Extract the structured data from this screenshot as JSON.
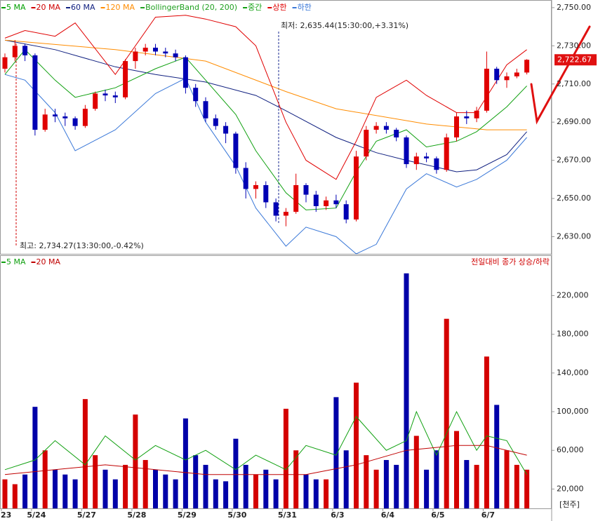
{
  "chart_data": [
    {
      "type": "candlestick",
      "series": [
        {
          "name": "5 MA",
          "color": "#00a000"
        },
        {
          "name": "20 MA",
          "color": "#d00000"
        },
        {
          "name": "60 MA",
          "color": "#102080",
          "x": [
            0,
            5,
            11,
            15,
            20,
            25,
            28,
            33,
            37,
            40,
            45,
            47,
            50,
            52
          ],
          "values": [
            2733,
            2728,
            2719,
            2715,
            2711,
            2704,
            2696,
            2682,
            2674,
            2670,
            2664,
            2665,
            2673,
            2685
          ]
        },
        {
          "name": "120 MA",
          "color": "#ff8c00",
          "x": [
            0,
            11,
            20,
            28,
            33,
            42,
            48,
            52
          ],
          "values": [
            2733,
            2728,
            2722,
            2706,
            2697,
            2689,
            2686,
            2686
          ]
        },
        {
          "name": "BollingerBand (20, 200)",
          "color": "#20a020"
        },
        {
          "name": "중간",
          "color": "#10a010",
          "x": [
            0,
            2,
            5,
            7,
            11,
            15,
            18,
            20,
            23,
            25,
            28,
            30,
            33,
            35,
            37,
            40,
            42,
            45,
            47,
            50,
            52
          ],
          "values": [
            2715,
            2728,
            2712,
            2703,
            2708,
            2718,
            2724,
            2712,
            2694,
            2675,
            2653,
            2644,
            2645,
            2664,
            2680,
            2686,
            2677,
            2680,
            2685,
            2698,
            2709
          ]
        },
        {
          "name": "상한",
          "color": "#e00000",
          "x": [
            0,
            2,
            5,
            7,
            11,
            15,
            18,
            20,
            23,
            25,
            28,
            30,
            33,
            35,
            37,
            40,
            42,
            45,
            47,
            50,
            52
          ],
          "values": [
            2734,
            2738,
            2735,
            2742,
            2715,
            2745,
            2746,
            2744,
            2740,
            2730,
            2690,
            2670,
            2660,
            2680,
            2703,
            2712,
            2704,
            2695,
            2695,
            2720,
            2728
          ]
        },
        {
          "name": "하한",
          "color": "#3a78d8",
          "x": [
            0,
            2,
            5,
            7,
            11,
            15,
            18,
            20,
            23,
            25,
            28,
            30,
            33,
            35,
            37,
            40,
            42,
            45,
            47,
            50,
            52
          ],
          "values": [
            2715,
            2712,
            2695,
            2675,
            2686,
            2705,
            2713,
            2690,
            2667,
            2645,
            2625,
            2635,
            2630,
            2621,
            2626,
            2655,
            2663,
            2656,
            2660,
            2670,
            2682
          ]
        }
      ],
      "categories": [
        "23",
        null,
        null,
        "5/24",
        null,
        null,
        null,
        null,
        "5/27",
        null,
        null,
        null,
        null,
        "5/28",
        null,
        null,
        null,
        null,
        "5/29",
        null,
        null,
        null,
        null,
        "5/30",
        null,
        null,
        null,
        null,
        "5/31",
        null,
        null,
        null,
        null,
        "6/3",
        null,
        null,
        null,
        null,
        "6/4",
        null,
        null,
        null,
        null,
        "6/5",
        null,
        null,
        null,
        null,
        "6/7",
        null,
        null,
        null,
        null
      ],
      "open": [
        2718,
        2724,
        2730,
        2725,
        2686,
        2694,
        2693,
        2692,
        2688,
        2697,
        2705,
        2704,
        2703,
        2722,
        2727,
        2729,
        2727,
        2726,
        2724,
        2708,
        2701,
        2692,
        2688,
        2684,
        2666,
        2655,
        2657,
        2648,
        2641,
        2643,
        2657,
        2652,
        2646,
        2649,
        2647,
        2639,
        2672,
        2686,
        2688,
        2686,
        2682,
        2668,
        2672,
        2671,
        2665,
        2682,
        2693,
        2692,
        2696,
        2718,
        2712,
        2714,
        2716
      ],
      "high": [
        2726,
        2733,
        2731,
        2726,
        2697,
        2697,
        2695,
        2693,
        2699,
        2706,
        2707,
        2706,
        2723,
        2729,
        2731,
        2731,
        2729,
        2728,
        2725,
        2710,
        2703,
        2694,
        2690,
        2685,
        2669,
        2659,
        2659,
        2650,
        2645,
        2663,
        2658,
        2654,
        2651,
        2652,
        2649,
        2675,
        2688,
        2690,
        2690,
        2687,
        2683,
        2674,
        2674,
        2672,
        2684,
        2695,
        2696,
        2698,
        2727,
        2719,
        2716,
        2718,
        2723
      ],
      "low": [
        2716,
        2722,
        2722,
        2683,
        2685,
        2690,
        2688,
        2686,
        2687,
        2696,
        2701,
        2700,
        2702,
        2718,
        2725,
        2725,
        2724,
        2722,
        2705,
        2698,
        2690,
        2686,
        2679,
        2663,
        2650,
        2650,
        2645,
        2638,
        2635.44,
        2642,
        2648,
        2643,
        2644,
        2645,
        2637,
        2638,
        2670,
        2684,
        2684,
        2680,
        2666,
        2665,
        2669,
        2663,
        2664,
        2680,
        2689,
        2690,
        2695,
        2710,
        2708,
        2713,
        2715
      ],
      "close": [
        2724,
        2730,
        2725,
        2686,
        2694,
        2693,
        2692,
        2688,
        2697,
        2705,
        2704,
        2703,
        2722,
        2727,
        2729,
        2727,
        2726,
        2724,
        2708,
        2701,
        2692,
        2688,
        2684,
        2666,
        2655,
        2657,
        2648,
        2641,
        2643,
        2657,
        2652,
        2646,
        2649,
        2647,
        2639,
        2672,
        2686,
        2688,
        2686,
        2682,
        2668,
        2672,
        2671,
        2665,
        2682,
        2693,
        2692,
        2696,
        2718,
        2712,
        2714,
        2716,
        2722.67
      ],
      "up_color": "#e00000",
      "down_color": "#0000b4",
      "ylim": [
        2621,
        2754
      ],
      "yticks": [
        {
          "value": 2630,
          "label": "2,630.00"
        },
        {
          "value": 2650,
          "label": "2,650.00"
        },
        {
          "value": 2670,
          "label": "2,670.00"
        },
        {
          "value": 2690,
          "label": "2,690.00"
        },
        {
          "value": 2710,
          "label": "2,710.00"
        },
        {
          "value": 2730,
          "label": "2,730.00"
        },
        {
          "value": 2750,
          "label": "2,750.00"
        }
      ],
      "min_annotation": "최저: 2,635.44(15:30:00,+3.31%)",
      "max_annotation": "최고: 2,734.27(13:30:00,-0.42%)",
      "last_label": {
        "value": 2722.67,
        "label": "2,722.67"
      }
    },
    {
      "type": "bar",
      "series": [
        {
          "name": "5 MA",
          "color": "#10a010",
          "x": [
            0,
            3,
            5,
            8,
            10,
            13,
            15,
            18,
            20,
            23,
            25,
            28,
            30,
            33,
            35,
            38,
            40,
            41,
            43,
            45,
            47,
            48,
            50,
            52
          ],
          "values": [
            40000,
            50000,
            70000,
            45000,
            75000,
            50000,
            65000,
            50000,
            60000,
            40000,
            55000,
            40000,
            65000,
            55000,
            95000,
            60000,
            70000,
            100000,
            55000,
            100000,
            60000,
            75000,
            70000,
            35000
          ]
        },
        {
          "name": "20 MA",
          "color": "#c00000",
          "x": [
            0,
            5,
            10,
            15,
            20,
            25,
            30,
            35,
            40,
            45,
            48,
            52
          ],
          "values": [
            35000,
            40000,
            45000,
            40000,
            35000,
            35000,
            35000,
            45000,
            60000,
            65000,
            65000,
            55000
          ]
        }
      ],
      "values": [
        30000,
        25000,
        35000,
        105000,
        60000,
        40000,
        35000,
        30000,
        113000,
        55000,
        40000,
        30000,
        45000,
        97000,
        50000,
        40000,
        35000,
        30000,
        93000,
        55000,
        45000,
        30000,
        28000,
        72000,
        45000,
        35000,
        40000,
        30000,
        103000,
        60000,
        35000,
        30000,
        30000,
        115000,
        60000,
        130000,
        55000,
        40000,
        50000,
        45000,
        243000,
        75000,
        40000,
        60000,
        196000,
        80000,
        50000,
        45000,
        157000,
        107000,
        60000,
        45000,
        40000
      ],
      "up_color": "#d40000",
      "down_color": "#0000a8",
      "ylim": [
        0,
        261000
      ],
      "yticks": [
        {
          "value": 20000,
          "label": "20,000"
        },
        {
          "value": 60000,
          "label": "60,000"
        },
        {
          "value": 100000,
          "label": "100,000"
        },
        {
          "value": 140000,
          "label": "140,000"
        },
        {
          "value": 180000,
          "label": "180,000"
        },
        {
          "value": 220000,
          "label": "220,000"
        }
      ],
      "annotation": "전일대비 종가 상승/하락",
      "unit": "[천주]"
    }
  ]
}
